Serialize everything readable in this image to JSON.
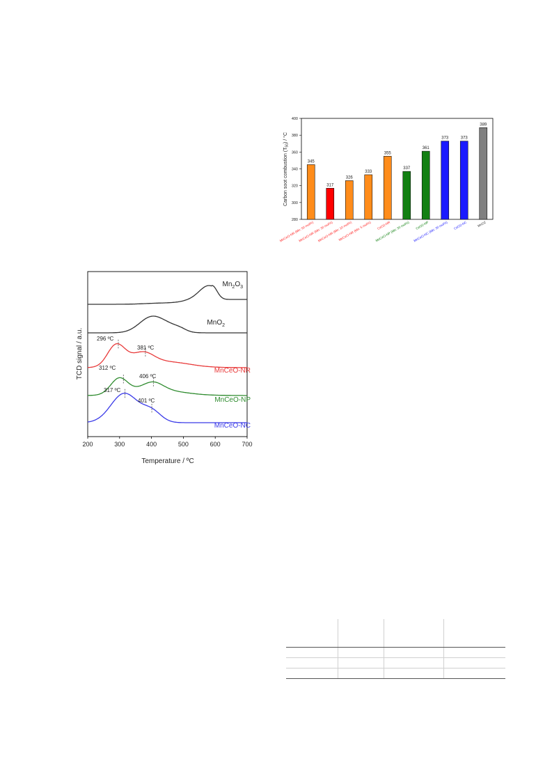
{
  "bar_chart": {
    "ylabel": "Carbon soot combustion (T50) / °C",
    "ylabel_main": "Carbon soot combustion (T",
    "ylabel_sub": "50",
    "ylabel_tail": ") / °C",
    "yticks": [
      280,
      300,
      320,
      340,
      360,
      380,
      400
    ]
  },
  "tpr_chart": {
    "xlabel": "Temperature / ºC",
    "ylabel": "TCD signal / a.u.",
    "xticks": [
      200,
      300,
      400,
      500,
      600,
      700
    ],
    "curve_labels": {
      "mn2o3": {
        "base": "Mn",
        "s1": "2",
        "mid": "O",
        "s2": "3"
      },
      "mno2": {
        "base": "MnO",
        "s1": "2"
      },
      "nr": "MnCeO-NR",
      "np": "MnCeO-NP",
      "nc": "MnCeO-NC"
    },
    "peak_labels": [
      "296 ºC",
      "381 ºC",
      "312 ºC",
      "406 ºC",
      "317 ºC",
      "401 ºC"
    ]
  },
  "chart_data": [
    {
      "type": "bar",
      "ylabel": "Carbon soot combustion (T50) / °C",
      "ylim": [
        280,
        400
      ],
      "categories": [
        "MnCeO-NR (Mn: 50 mol%)",
        "MnCeO-NR (Mn: 30 mol%)",
        "MnCeO-NR (Mn: 10 mol%)",
        "MnCeO-NR (Mn: 5 mol%)",
        "CeO2-NR",
        "MnCeO-NP (Mn: 30 mol%)",
        "CeO2-NP",
        "MnCeO-NC (Mn: 30 mol%)",
        "CeO2-NC",
        "MnO2"
      ],
      "values": [
        345,
        317,
        326,
        333,
        355,
        337,
        361,
        373,
        373,
        389
      ],
      "bar_colors": [
        "#ff8c1a",
        "#ff0000",
        "#ff8c1a",
        "#ff8c1a",
        "#ff8c1a",
        "#128012",
        "#128012",
        "#1a1aff",
        "#1a1aff",
        "#808080"
      ],
      "label_colors": [
        "#ff2222",
        "#ff2222",
        "#ff2222",
        "#ff2222",
        "#ff2222",
        "#128012",
        "#128012",
        "#1a1aff",
        "#1a1aff",
        "#333333"
      ],
      "data_labels": [
        "345",
        "317",
        "326",
        "333",
        "355",
        "337",
        "361",
        "373",
        "373",
        "389"
      ]
    },
    {
      "type": "line",
      "xlabel": "Temperature / ºC",
      "ylabel": "TCD signal / a.u.",
      "xlim": [
        200,
        700
      ],
      "series": [
        {
          "name": "Mn2O3",
          "color": "#333333",
          "peaks": [
            590
          ]
        },
        {
          "name": "MnO2",
          "color": "#333333",
          "peaks": [
            400
          ]
        },
        {
          "name": "MnCeO-NR",
          "color": "#e83a3a",
          "peaks": [
            296,
            381
          ]
        },
        {
          "name": "MnCeO-NP",
          "color": "#2e8b2e",
          "peaks": [
            312,
            406
          ]
        },
        {
          "name": "MnCeO-NC",
          "color": "#3a3ae8",
          "peaks": [
            317,
            401
          ]
        }
      ]
    }
  ],
  "table": {
    "rows": 4,
    "cols": 4
  }
}
